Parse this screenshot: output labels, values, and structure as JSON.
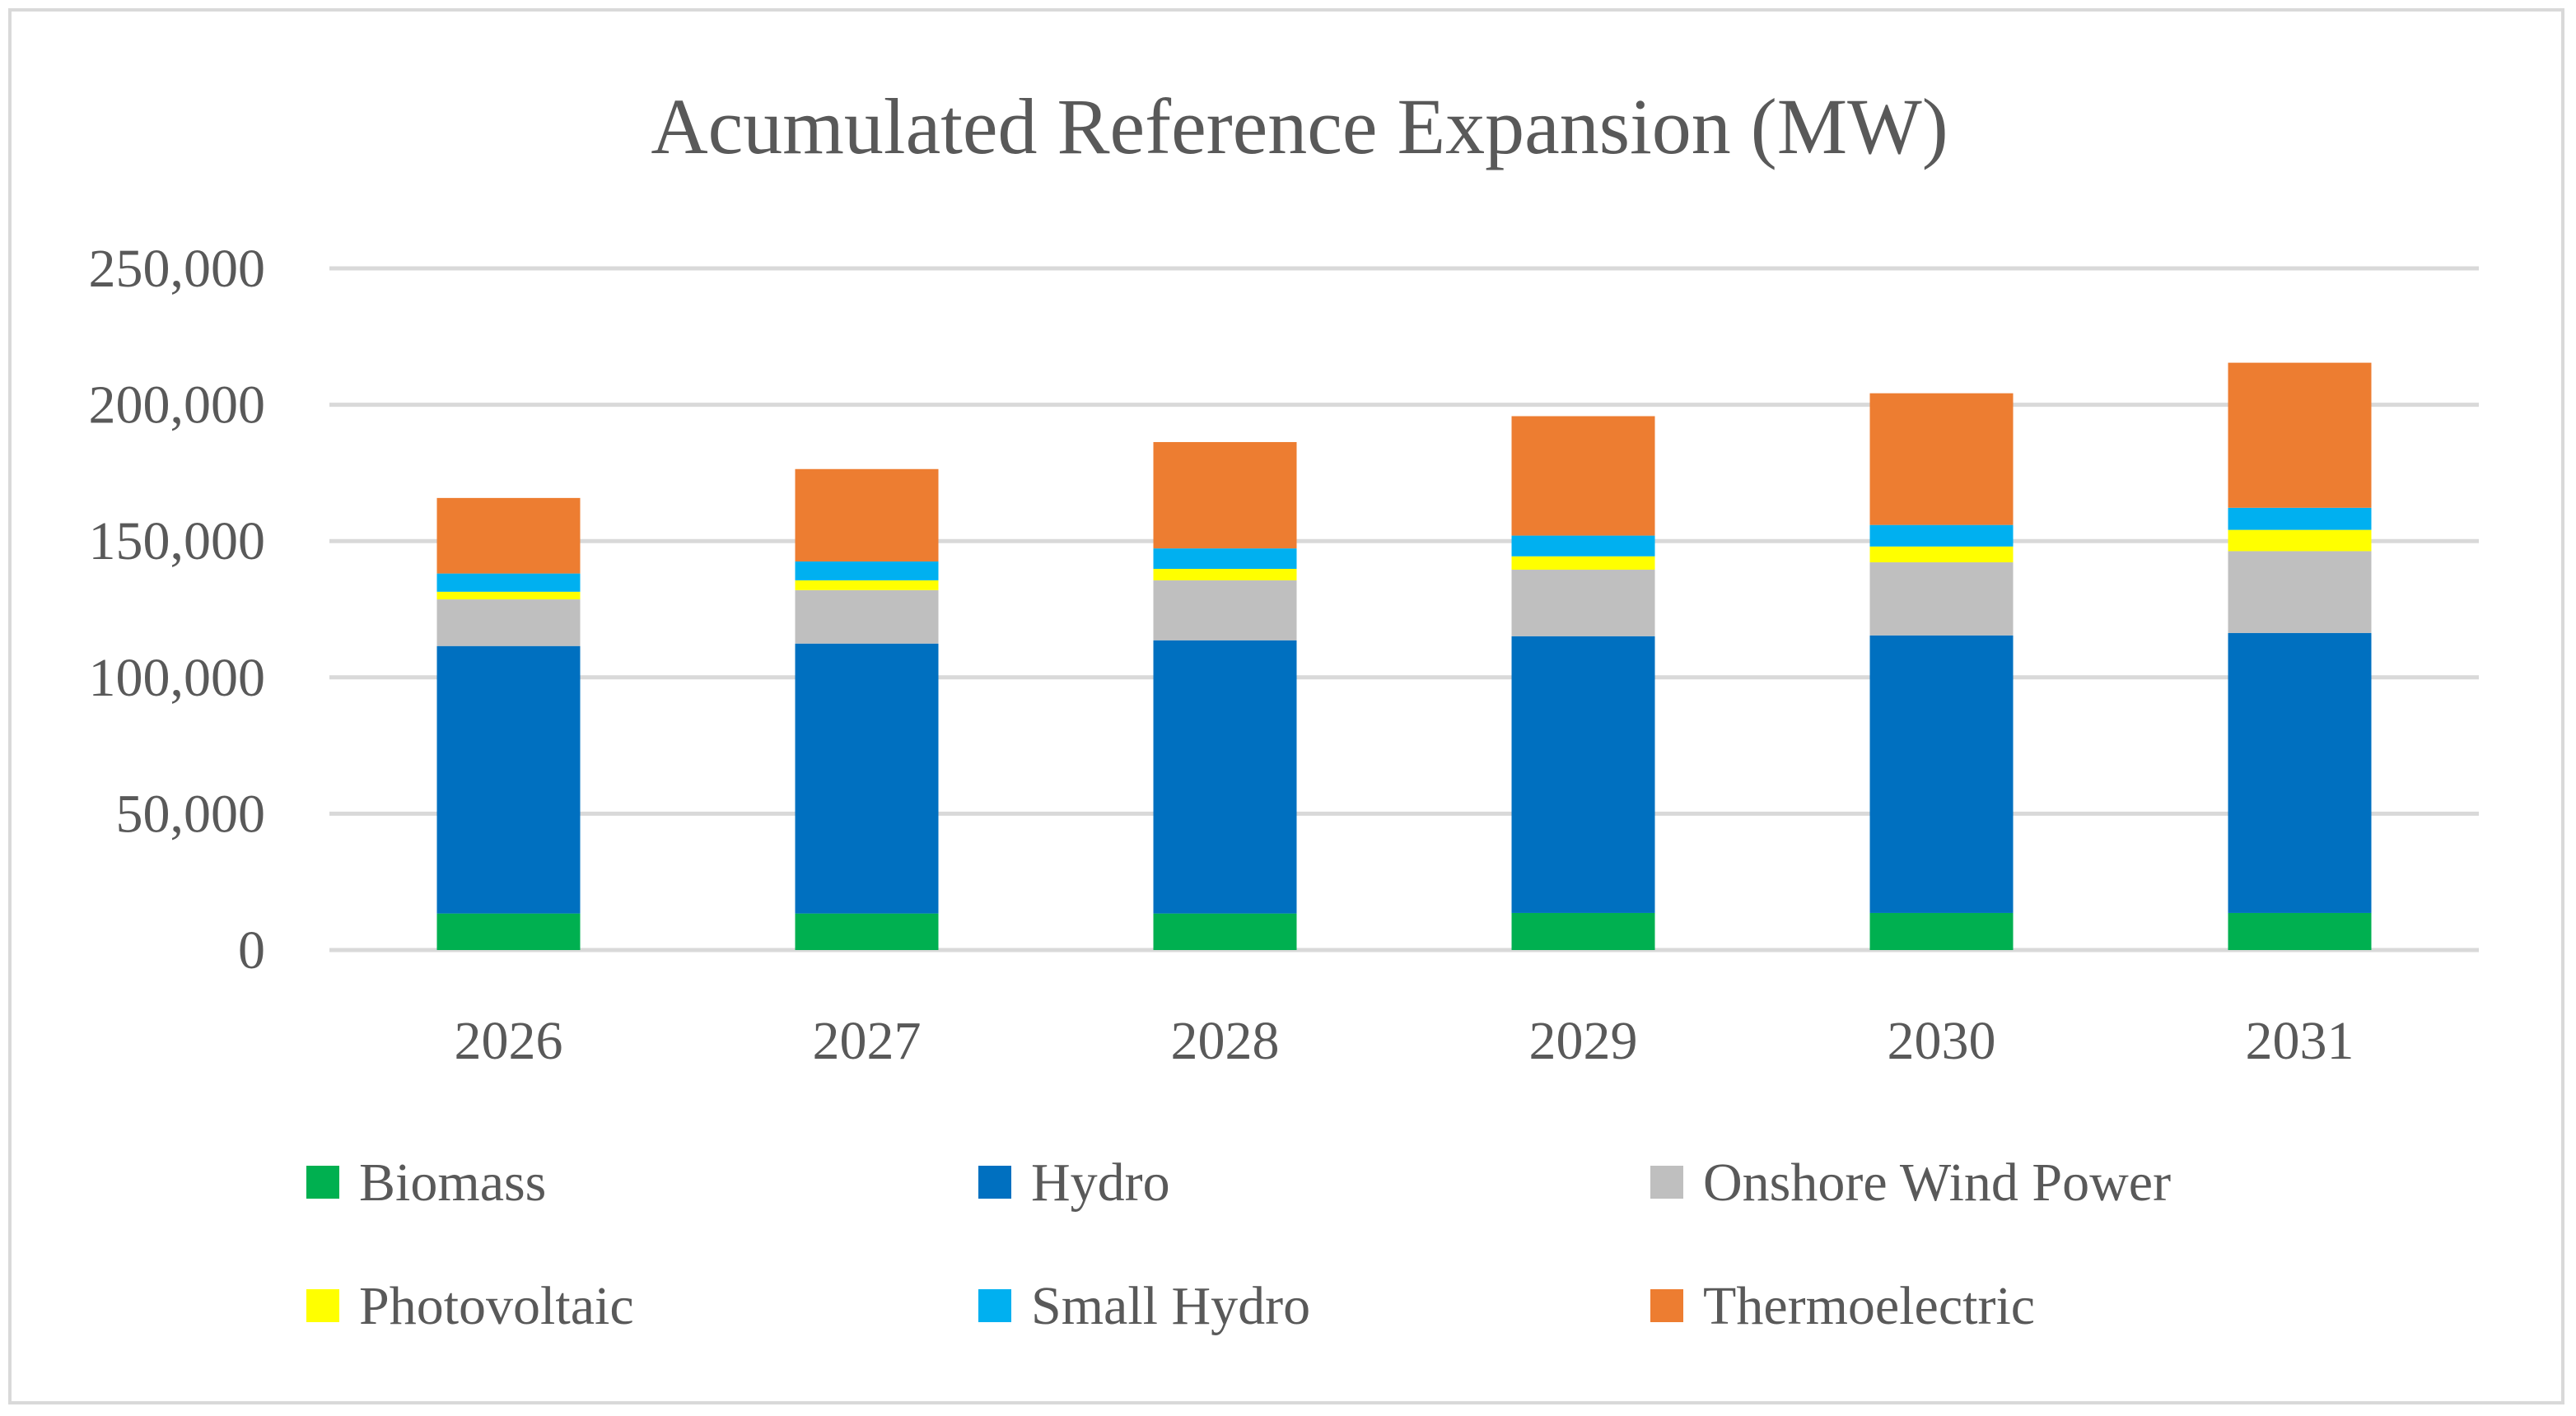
{
  "chart_data": {
    "type": "bar",
    "stacked": true,
    "title": "Acumulated Reference Expansion (MW)",
    "xlabel": "",
    "ylabel": "",
    "ylim": [
      0,
      250000
    ],
    "yticks": [
      0,
      50000,
      100000,
      150000,
      200000,
      250000
    ],
    "ytick_labels": [
      "0",
      "50,000",
      "100,000",
      "150,000",
      "200,000",
      "250,000"
    ],
    "grid": true,
    "legend_position": "bottom",
    "categories": [
      "2026",
      "2027",
      "2028",
      "2029",
      "2030",
      "2031"
    ],
    "series": [
      {
        "name": "Biomass",
        "color": "#00B050",
        "values": [
          13400,
          13400,
          13400,
          13600,
          13600,
          13600
        ]
      },
      {
        "name": "Hydro",
        "color": "#0070C0",
        "values": [
          98100,
          99000,
          100200,
          101500,
          101800,
          102700
        ]
      },
      {
        "name": "Onshore Wind Power",
        "color": "#BFBFBF",
        "values": [
          17100,
          19600,
          22000,
          24400,
          26800,
          30000
        ]
      },
      {
        "name": "Photovoltaic",
        "color": "#FFFF00",
        "values": [
          2800,
          3600,
          4200,
          4900,
          5800,
          7800
        ]
      },
      {
        "name": "Small Hydro",
        "color": "#00B0F0",
        "values": [
          6700,
          6900,
          7500,
          7600,
          7900,
          8100
        ]
      },
      {
        "name": "Thermoelectric",
        "color": "#ED7D31",
        "values": [
          27700,
          33900,
          39000,
          43800,
          48300,
          53200
        ]
      }
    ]
  }
}
